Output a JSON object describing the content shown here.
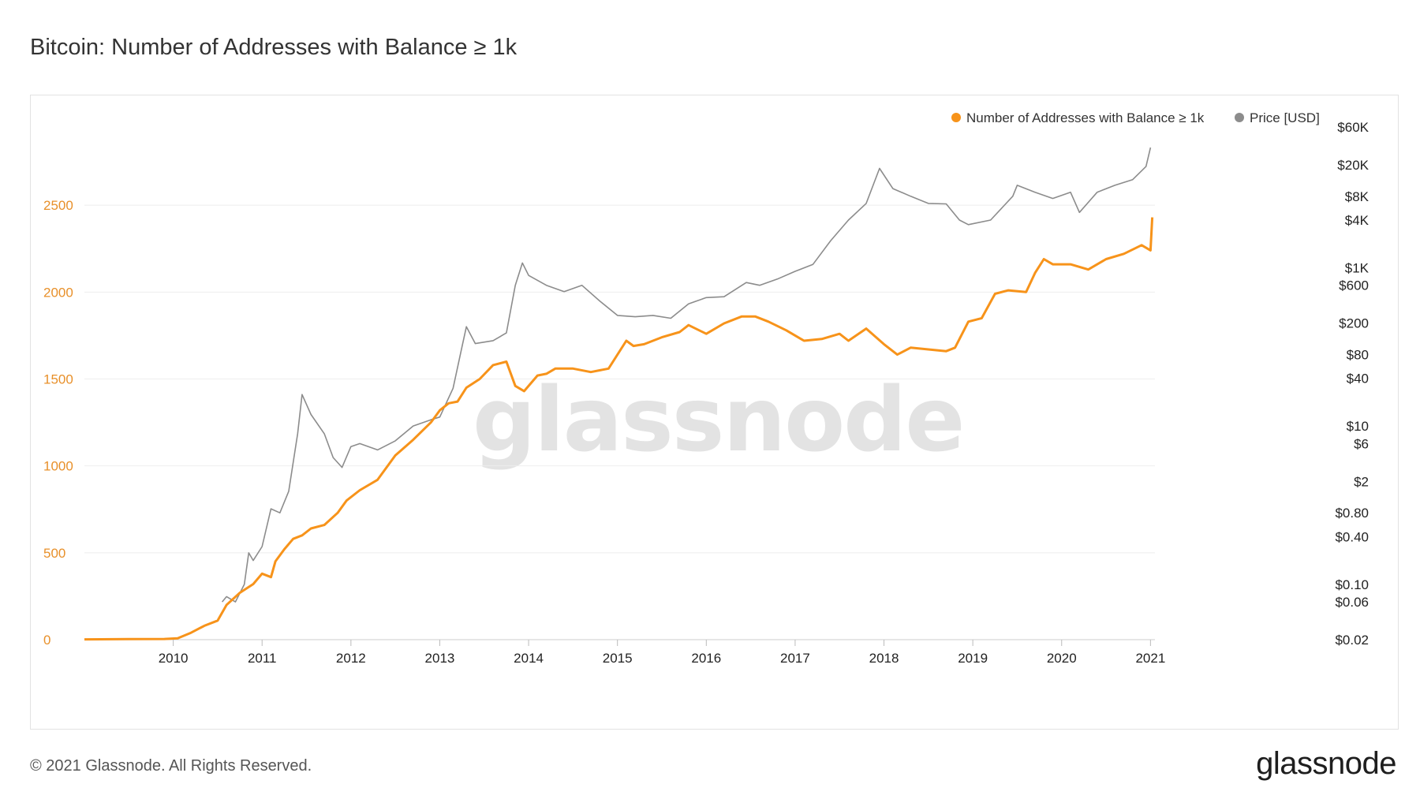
{
  "header": {
    "title": "Bitcoin: Number of Addresses with Balance ≥ 1k"
  },
  "footer": {
    "copyright": "© 2021 Glassnode. All Rights Reserved.",
    "logo_text": "glassnode"
  },
  "watermark": "glassnode",
  "colors": {
    "addresses": "#f7931a",
    "price": "#8c8c8c",
    "grid": "#eeeeee",
    "left_axis_text": "#e8902a"
  },
  "chart_data": {
    "type": "line",
    "title": "Bitcoin: Number of Addresses with Balance ≥ 1k",
    "x_ticks": [
      "2010",
      "2011",
      "2012",
      "2013",
      "2014",
      "2015",
      "2016",
      "2017",
      "2018",
      "2019",
      "2020",
      "2021"
    ],
    "x_range": [
      2009.0,
      2021.05
    ],
    "y_left": {
      "ticks": [
        "0",
        "500",
        "1000",
        "1500",
        "2000",
        "2500"
      ],
      "range": [
        0,
        2950
      ]
    },
    "y_right": {
      "scale": "log",
      "ticks": [
        "$0.02",
        "$0.06",
        "$0.10",
        "$0.40",
        "$0.80",
        "$2",
        "$6",
        "$10",
        "$40",
        "$80",
        "$200",
        "$600",
        "$1K",
        "$4K",
        "$8K",
        "$20K",
        "$60K"
      ],
      "tick_values": [
        0.02,
        0.06,
        0.1,
        0.4,
        0.8,
        2,
        6,
        10,
        40,
        80,
        200,
        600,
        1000,
        4000,
        8000,
        20000,
        60000
      ],
      "range": [
        0.02,
        60000
      ]
    },
    "grid": true,
    "legend_position": "top-right",
    "series": [
      {
        "name": "Number of Addresses with Balance ≥ 1k",
        "axis": "left",
        "x": [
          2009.0,
          2009.5,
          2009.9,
          2010.05,
          2010.2,
          2010.35,
          2010.5,
          2010.6,
          2010.75,
          2010.9,
          2011.0,
          2011.1,
          2011.15,
          2011.25,
          2011.35,
          2011.45,
          2011.55,
          2011.7,
          2011.85,
          2011.95,
          2012.1,
          2012.3,
          2012.5,
          2012.7,
          2012.9,
          2013.0,
          2013.1,
          2013.2,
          2013.3,
          2013.45,
          2013.6,
          2013.75,
          2013.85,
          2013.95,
          2014.1,
          2014.2,
          2014.3,
          2014.5,
          2014.7,
          2014.9,
          2015.1,
          2015.18,
          2015.3,
          2015.5,
          2015.7,
          2015.8,
          2016.0,
          2016.2,
          2016.4,
          2016.55,
          2016.7,
          2016.9,
          2017.1,
          2017.3,
          2017.5,
          2017.6,
          2017.8,
          2018.0,
          2018.15,
          2018.3,
          2018.5,
          2018.7,
          2018.8,
          2018.95,
          2019.1,
          2019.25,
          2019.4,
          2019.6,
          2019.7,
          2019.8,
          2019.9,
          2020.1,
          2020.3,
          2020.5,
          2020.7,
          2020.9,
          2021.0,
          2021.02
        ],
        "values": [
          2,
          3,
          4,
          8,
          40,
          80,
          110,
          200,
          270,
          320,
          380,
          360,
          450,
          520,
          580,
          600,
          640,
          660,
          730,
          800,
          860,
          920,
          1060,
          1150,
          1250,
          1320,
          1360,
          1370,
          1450,
          1500,
          1580,
          1600,
          1460,
          1430,
          1520,
          1530,
          1560,
          1560,
          1540,
          1560,
          1720,
          1690,
          1700,
          1740,
          1770,
          1810,
          1760,
          1820,
          1860,
          1860,
          1830,
          1780,
          1720,
          1730,
          1760,
          1720,
          1790,
          1700,
          1640,
          1680,
          1670,
          1660,
          1680,
          1830,
          1850,
          1990,
          2010,
          2000,
          2110,
          2190,
          2160,
          2160,
          2130,
          2190,
          2220,
          2270,
          2240,
          2430
        ]
      },
      {
        "name": "Price [USD]",
        "axis": "right",
        "x": [
          2010.55,
          2010.6,
          2010.7,
          2010.8,
          2010.85,
          2010.9,
          2011.0,
          2011.1,
          2011.2,
          2011.3,
          2011.4,
          2011.45,
          2011.55,
          2011.7,
          2011.8,
          2011.9,
          2012.0,
          2012.1,
          2012.3,
          2012.5,
          2012.7,
          2012.9,
          2013.0,
          2013.15,
          2013.25,
          2013.3,
          2013.4,
          2013.6,
          2013.75,
          2013.85,
          2013.93,
          2014.0,
          2014.2,
          2014.4,
          2014.6,
          2014.8,
          2015.0,
          2015.2,
          2015.4,
          2015.6,
          2015.8,
          2016.0,
          2016.2,
          2016.45,
          2016.6,
          2016.8,
          2017.0,
          2017.2,
          2017.4,
          2017.6,
          2017.8,
          2017.95,
          2018.1,
          2018.3,
          2018.5,
          2018.7,
          2018.85,
          2018.95,
          2019.2,
          2019.45,
          2019.5,
          2019.7,
          2019.9,
          2020.1,
          2020.2,
          2020.4,
          2020.6,
          2020.8,
          2020.95,
          2021.0
        ],
        "values": [
          0.06,
          0.07,
          0.06,
          0.1,
          0.25,
          0.2,
          0.3,
          0.9,
          0.8,
          1.5,
          8,
          25,
          14,
          8,
          4,
          3,
          5.5,
          6,
          5,
          6.5,
          10,
          12,
          13,
          30,
          100,
          180,
          110,
          120,
          150,
          600,
          1150,
          800,
          600,
          500,
          600,
          380,
          250,
          240,
          250,
          230,
          350,
          420,
          430,
          650,
          600,
          720,
          900,
          1100,
          2200,
          4000,
          6500,
          18000,
          10000,
          8000,
          6500,
          6400,
          4000,
          3500,
          4000,
          8000,
          11000,
          9000,
          7500,
          9000,
          5000,
          9000,
          11000,
          13000,
          19000,
          33000
        ]
      }
    ]
  }
}
